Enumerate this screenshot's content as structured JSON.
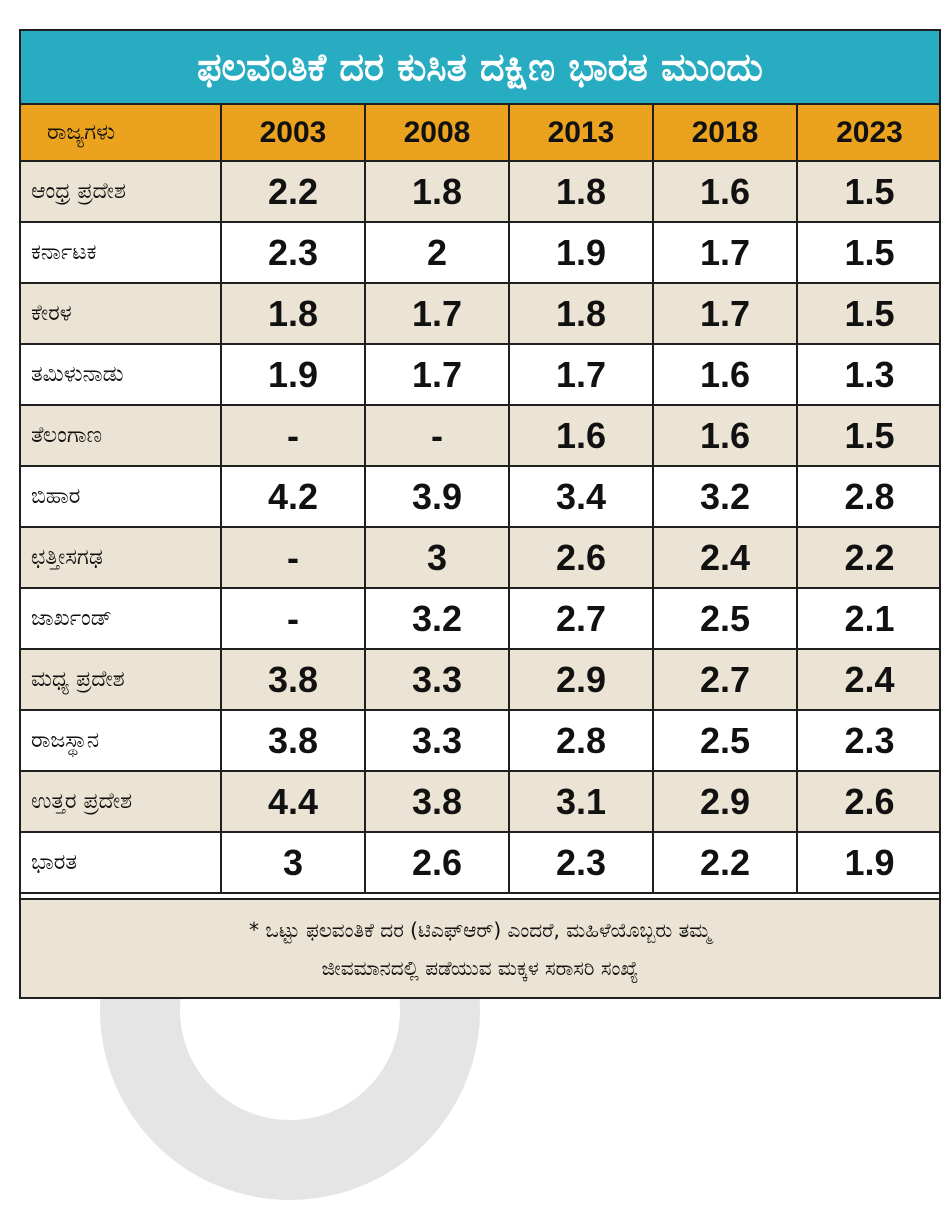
{
  "title": "ಫಲವಂತಿಕೆ ದರ ಕುಸಿತ ದಕ್ಷಿಣ ಭಾರತ ಮುಂದು",
  "chart_data": {
    "type": "table",
    "title": "ಫಲವಂತಿಕೆ ದರ ಕುಸಿತ ದಕ್ಷಿಣ ಭಾರತ ಮುಂದು",
    "row_header": "ರಾಜ್ಯಗಳು",
    "columns": [
      "2003",
      "2008",
      "2013",
      "2018",
      "2023"
    ],
    "rows": [
      {
        "state": "ಆಂಧ್ರ ಪ್ರದೇಶ",
        "values": [
          "2.2",
          "1.8",
          "1.8",
          "1.6",
          "1.5"
        ]
      },
      {
        "state": "ಕರ್ನಾಟಕ",
        "values": [
          "2.3",
          "2",
          "1.9",
          "1.7",
          "1.5"
        ]
      },
      {
        "state": "ಕೇರಳ",
        "values": [
          "1.8",
          "1.7",
          "1.8",
          "1.7",
          "1.5"
        ]
      },
      {
        "state": "ತಮಿಳುನಾಡು",
        "values": [
          "1.9",
          "1.7",
          "1.7",
          "1.6",
          "1.3"
        ]
      },
      {
        "state": "ತೆಲಂಗಾಣ",
        "values": [
          "-",
          "-",
          "1.6",
          "1.6",
          "1.5"
        ]
      },
      {
        "state": "ಬಿಹಾರ",
        "values": [
          "4.2",
          "3.9",
          "3.4",
          "3.2",
          "2.8"
        ]
      },
      {
        "state": "ಛತ್ತೀಸಗಢ",
        "values": [
          "-",
          "3",
          "2.6",
          "2.4",
          "2.2"
        ]
      },
      {
        "state": "ಜಾರ್ಖಂಡ್",
        "values": [
          "-",
          "3.2",
          "2.7",
          "2.5",
          "2.1"
        ]
      },
      {
        "state": "ಮಧ್ಯ ಪ್ರದೇಶ",
        "values": [
          "3.8",
          "3.3",
          "2.9",
          "2.7",
          "2.4"
        ]
      },
      {
        "state": "ರಾಜಸ್ಥಾನ",
        "values": [
          "3.8",
          "3.3",
          "2.8",
          "2.5",
          "2.3"
        ]
      },
      {
        "state": "ಉತ್ತರ ಪ್ರದೇಶ",
        "values": [
          "4.4",
          "3.8",
          "3.1",
          "2.9",
          "2.6"
        ]
      },
      {
        "state": "ಭಾರತ",
        "values": [
          "3",
          "2.6",
          "2.3",
          "2.2",
          "1.9"
        ]
      }
    ]
  },
  "footnote": {
    "line1": "* ಒಟ್ಟು ಫಲವಂತಿಕೆ ದರ (ಟಿಎಫ್‌ಆರ್) ಎಂದರೆ, ಮಹಿಳೆಯೊಬ್ಬರು ತಮ್ಮ",
    "line2": "ಜೀವಮಾನದಲ್ಲಿ ಪಡೆಯುವ ಮಕ್ಕಳ ಸರಾಸರಿ ಸಂಖ್ಯೆ"
  },
  "colors": {
    "title_bg": "#28acc2",
    "header_bg": "#eba21f",
    "row_shade": "#ebe3d3",
    "border": "#1f1f1f"
  }
}
